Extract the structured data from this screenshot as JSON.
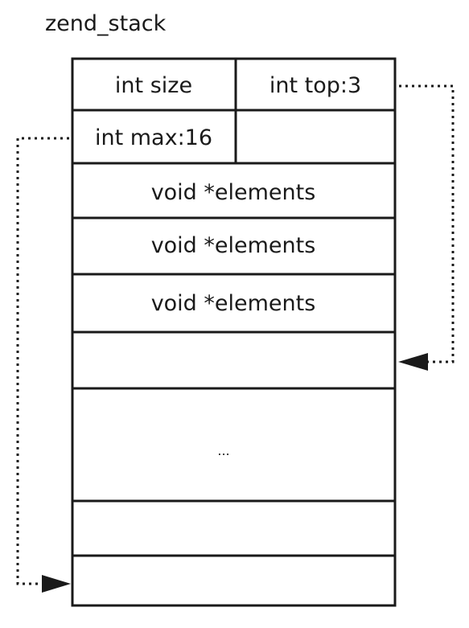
{
  "diagram": {
    "title": "zend_stack",
    "fields": {
      "size": "int size",
      "top": "int top:3",
      "max": "int max:16"
    },
    "elements": [
      "void *elements",
      "void *elements",
      "void *elements"
    ],
    "ellipsis": "..."
  },
  "colors": {
    "line": "#1a1a1a",
    "background": "#ffffff"
  }
}
